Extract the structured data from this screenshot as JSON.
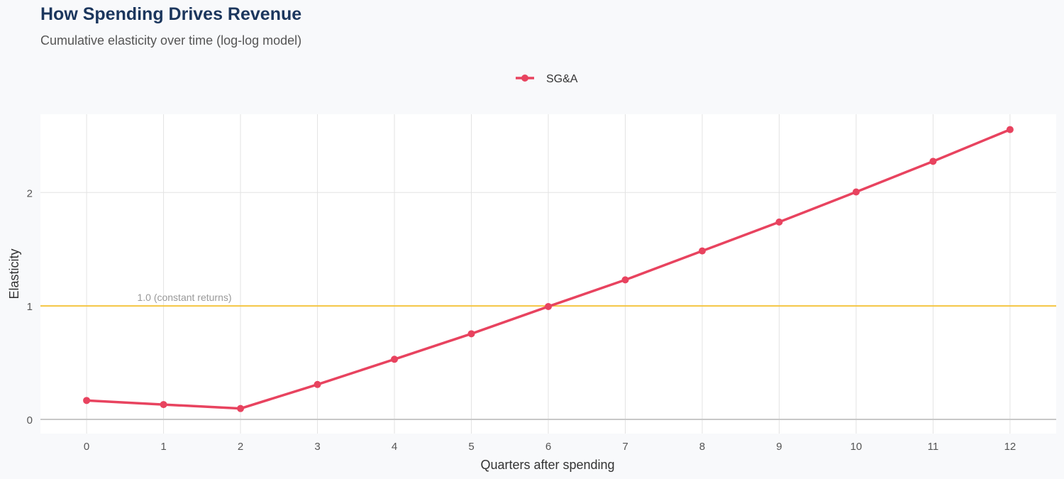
{
  "chart_data": {
    "type": "line",
    "title": "How Spending Drives Revenue",
    "subtitle": "Cumulative elasticity over time (log-log model)",
    "xlabel": "Quarters after spending",
    "ylabel": "Elasticity",
    "x": [
      0,
      1,
      2,
      3,
      4,
      5,
      6,
      7,
      8,
      9,
      10,
      11,
      12
    ],
    "xticks": [
      0,
      1,
      2,
      3,
      4,
      5,
      6,
      7,
      8,
      9,
      10,
      11,
      12
    ],
    "yticks": [
      0,
      1,
      2
    ],
    "xlim": [
      -0.6,
      12.6
    ],
    "ylim": [
      -0.125,
      2.69
    ],
    "grid": true,
    "legend_position": "top",
    "series": [
      {
        "name": "SG&A",
        "color": "#e8435f",
        "values": [
          0.167,
          0.131,
          0.096,
          0.308,
          0.53,
          0.755,
          0.995,
          1.23,
          1.485,
          1.74,
          2.005,
          2.275,
          2.555
        ]
      }
    ],
    "reference_line": {
      "y": 1.0,
      "label": "1.0 (constant returns)",
      "color": "#f5c542"
    }
  }
}
